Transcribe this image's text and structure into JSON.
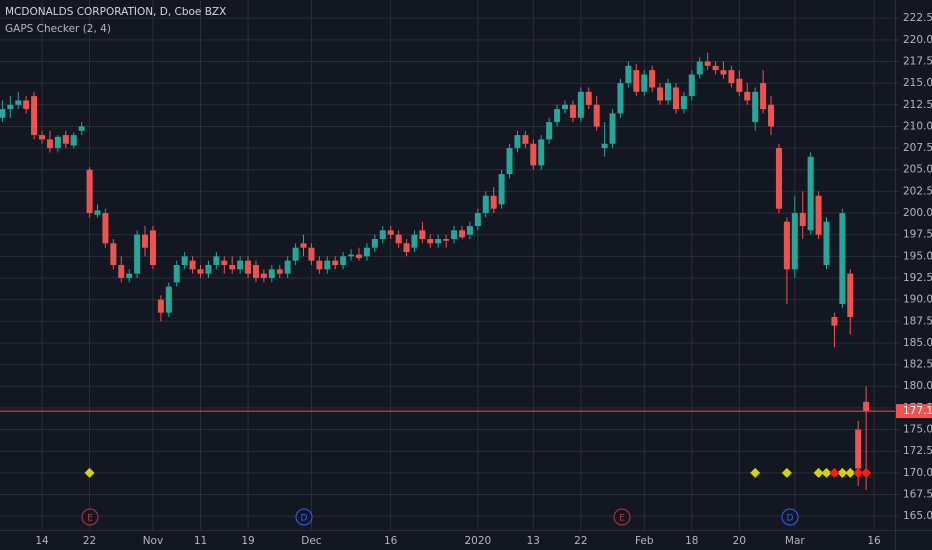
{
  "chart_data": {
    "type": "candlestick",
    "title": "MCDONALDS CORPORATION, D, Cboe BZX",
    "subtitle": "GAPS Checker (2, 4)",
    "up_color": "#26a69a",
    "down_color": "#ef5350",
    "last_price_color": "#ef5350",
    "grid": true,
    "ylim": [
      163.4,
      224.6
    ],
    "yticks": [
      {
        "value": 165,
        "label": "165.00"
      },
      {
        "value": 167.5,
        "label": "167.50"
      },
      {
        "value": 170,
        "label": "170.00"
      },
      {
        "value": 172.5,
        "label": "172.50"
      },
      {
        "value": 175,
        "label": "175.00"
      },
      {
        "value": 177.5,
        "label": "177.50"
      },
      {
        "value": 180,
        "label": "180.00"
      },
      {
        "value": 182.5,
        "label": "182.50"
      },
      {
        "value": 185,
        "label": "185.00"
      },
      {
        "value": 187.5,
        "label": "187.50"
      },
      {
        "value": 190,
        "label": "190.00"
      },
      {
        "value": 192.5,
        "label": "192.50"
      },
      {
        "value": 195,
        "label": "195.00"
      },
      {
        "value": 197.5,
        "label": "197.50"
      },
      {
        "value": 200,
        "label": "200.00"
      },
      {
        "value": 202.5,
        "label": "202.50"
      },
      {
        "value": 205,
        "label": "205.00"
      },
      {
        "value": 207.5,
        "label": "207.50"
      },
      {
        "value": 210,
        "label": "210.00"
      },
      {
        "value": 212.5,
        "label": "212.50"
      },
      {
        "value": 215,
        "label": "215.00"
      },
      {
        "value": 217.5,
        "label": "217.50"
      },
      {
        "value": 220,
        "label": "220.00"
      },
      {
        "value": 222.5,
        "label": "222.50"
      }
    ],
    "categories": [
      null,
      null,
      null,
      null,
      null,
      "14",
      null,
      null,
      null,
      null,
      null,
      "22",
      null,
      null,
      null,
      null,
      null,
      null,
      null,
      "Nov",
      null,
      null,
      null,
      null,
      null,
      "11",
      null,
      null,
      null,
      null,
      null,
      "19",
      null,
      null,
      null,
      null,
      null,
      null,
      null,
      "Dec",
      null,
      null,
      null,
      null,
      null,
      null,
      null,
      null,
      null,
      "16",
      null,
      null,
      null,
      null,
      null,
      null,
      null,
      null,
      null,
      null,
      "2020",
      null,
      null,
      null,
      null,
      null,
      null,
      "13",
      null,
      null,
      null,
      null,
      null,
      "22",
      null,
      null,
      null,
      null,
      null,
      null,
      null,
      "Feb",
      null,
      null,
      null,
      null,
      null,
      "18",
      null,
      null,
      null,
      null,
      null,
      "20",
      null,
      null,
      null,
      null,
      null,
      null,
      "Mar",
      null,
      null,
      null,
      null,
      null,
      null,
      null,
      null,
      null,
      "16"
    ],
    "open": [
      211,
      212,
      212.5,
      213,
      213.5,
      209,
      208.5,
      207.5,
      209,
      207.8,
      209.5,
      205,
      199.8,
      200,
      196.5,
      194,
      192.5,
      193,
      197.5,
      198,
      190,
      188.5,
      192,
      194,
      194.5,
      193.5,
      193,
      194,
      194.5,
      194,
      193.5,
      194.5,
      194,
      193,
      192.5,
      193.5,
      193,
      194.5,
      196.5,
      196,
      194.5,
      193.5,
      194.5,
      194,
      195,
      195.2,
      195,
      196,
      197,
      198,
      197.5,
      196.5,
      196,
      198,
      197,
      196.5,
      197,
      197,
      198,
      197.5,
      198.5,
      200,
      202,
      201,
      204.5,
      207.5,
      209,
      208,
      205.5,
      208.5,
      210.5,
      212,
      212.5,
      211,
      214,
      212.5,
      207.5,
      208,
      211.5,
      215,
      216.5,
      214,
      216.5,
      214.5,
      213,
      214.5,
      212,
      213.5,
      216,
      217.5,
      217,
      216.5,
      216.5,
      215.5,
      214,
      210.5,
      215,
      212.5,
      207.5,
      199,
      193.5,
      200,
      198,
      202,
      194,
      188,
      189.5,
      193,
      175,
      178.2,
      null
    ],
    "high": [
      213,
      213.5,
      214,
      213.5,
      214,
      209.5,
      209.5,
      209,
      209.5,
      209.3,
      210.5,
      205.3,
      201,
      200.5,
      197,
      195,
      193.5,
      198,
      198.5,
      198.5,
      190.5,
      192,
      194.5,
      195.5,
      195,
      194,
      194.5,
      195.5,
      195,
      195,
      195,
      195,
      194.5,
      193.5,
      194,
      194,
      195,
      196.5,
      197.5,
      196.5,
      195,
      195,
      195,
      195.5,
      195.8,
      196,
      196.5,
      197.5,
      198.5,
      198.5,
      198,
      197,
      198,
      199,
      197.5,
      197.5,
      197.5,
      198.5,
      198.5,
      199,
      200.5,
      202.5,
      203,
      205,
      208,
      209.5,
      209.5,
      208.5,
      209,
      211,
      212.5,
      213,
      213,
      214.5,
      214.5,
      213.5,
      210.5,
      212,
      215.5,
      217.5,
      217.2,
      216.5,
      217,
      215,
      215.5,
      215,
      214,
      216.5,
      218,
      218.5,
      217.5,
      217.5,
      217,
      216.5,
      215,
      214.5,
      216.5,
      213.5,
      208,
      199.5,
      202,
      202.5,
      207,
      202.5,
      199.5,
      188.5,
      200.5,
      193.5,
      176,
      180,
      null
    ],
    "low": [
      210.5,
      211,
      212,
      211.5,
      208.5,
      208,
      207,
      207,
      207.5,
      207.5,
      209,
      199.5,
      199.5,
      196,
      193.5,
      192,
      192,
      192.5,
      195,
      193.5,
      187.5,
      188,
      191.5,
      193.5,
      193,
      192.5,
      192.5,
      193.5,
      193,
      193,
      193,
      192.5,
      192,
      192,
      192,
      192.5,
      192.5,
      194,
      195,
      194,
      193,
      193,
      193.5,
      193.5,
      194.5,
      194.5,
      194.5,
      195.5,
      196.5,
      197,
      196,
      195,
      195.5,
      196.5,
      196,
      196,
      196,
      196.5,
      197,
      197,
      198,
      199.5,
      200,
      200.5,
      204,
      207,
      207.5,
      205,
      205,
      208,
      210,
      211.5,
      210.5,
      210.5,
      212,
      209.5,
      206.5,
      207.5,
      211,
      214.5,
      213.5,
      213.5,
      214,
      212.5,
      212.5,
      211.5,
      211.5,
      213,
      215.5,
      216.5,
      216,
      215.5,
      214.5,
      213.5,
      212.5,
      209.5,
      211.5,
      209,
      200,
      189.5,
      192.5,
      197,
      197.5,
      197,
      193.5,
      184.5,
      189,
      186,
      168.5,
      168,
      null
    ],
    "close": [
      212,
      212.5,
      213,
      212,
      209,
      208.5,
      207.5,
      208.8,
      208,
      209,
      210,
      200,
      200.3,
      196.5,
      194,
      192.5,
      193,
      197.5,
      196,
      194,
      188.5,
      191.5,
      194,
      195,
      193.5,
      193,
      194,
      195,
      194,
      193.5,
      194.5,
      193,
      192.5,
      192.5,
      193.5,
      193,
      194.5,
      196,
      196,
      194.5,
      193.5,
      194.5,
      194,
      195,
      195.2,
      194.8,
      196,
      197,
      198,
      197.5,
      196.5,
      195.5,
      197.5,
      197,
      196.5,
      197,
      196.8,
      198,
      197.2,
      198.5,
      200,
      202,
      200.5,
      204.5,
      207.5,
      209,
      208,
      205.5,
      208.5,
      210.5,
      212,
      212.5,
      211,
      214,
      212.5,
      210,
      208,
      211.5,
      215,
      217,
      214,
      216,
      214.5,
      213,
      215,
      212,
      213.5,
      216,
      217.5,
      217,
      216.5,
      216,
      215,
      214,
      213,
      214,
      212,
      210,
      200.5,
      193.5,
      200,
      198.5,
      206.5,
      197.5,
      199,
      187,
      200,
      188,
      170.5,
      177.13,
      null
    ],
    "markers": [
      {
        "color": "#d4d400",
        "values": [
          null,
          null,
          null,
          null,
          null,
          null,
          null,
          null,
          null,
          null,
          null,
          170,
          null,
          null,
          null,
          null,
          null,
          null,
          null,
          null,
          null,
          null,
          null,
          null,
          null,
          null,
          null,
          null,
          null,
          null,
          null,
          null,
          null,
          null,
          null,
          null,
          null,
          null,
          null,
          null,
          null,
          null,
          null,
          null,
          null,
          null,
          null,
          null,
          null,
          null,
          null,
          null,
          null,
          null,
          null,
          null,
          null,
          null,
          null,
          null,
          null,
          null,
          null,
          null,
          null,
          null,
          null,
          null,
          null,
          null,
          null,
          null,
          null,
          null,
          null,
          null,
          null,
          null,
          null,
          null,
          null,
          null,
          null,
          null,
          null,
          null,
          null,
          null,
          null,
          null,
          null,
          null,
          null,
          null,
          null,
          170,
          null,
          null,
          null,
          170,
          null,
          null,
          null,
          170,
          170,
          null,
          170,
          170,
          null,
          null,
          null
        ]
      },
      {
        "color": "#ff1a1a",
        "values": [
          null,
          null,
          null,
          null,
          null,
          null,
          null,
          null,
          null,
          null,
          null,
          null,
          null,
          null,
          null,
          null,
          null,
          null,
          null,
          null,
          null,
          null,
          null,
          null,
          null,
          null,
          null,
          null,
          null,
          null,
          null,
          null,
          null,
          null,
          null,
          null,
          null,
          null,
          null,
          null,
          null,
          null,
          null,
          null,
          null,
          null,
          null,
          null,
          null,
          null,
          null,
          null,
          null,
          null,
          null,
          null,
          null,
          null,
          null,
          null,
          null,
          null,
          null,
          null,
          null,
          null,
          null,
          null,
          null,
          null,
          null,
          null,
          null,
          null,
          null,
          null,
          null,
          null,
          null,
          null,
          null,
          null,
          null,
          null,
          null,
          null,
          null,
          null,
          null,
          null,
          null,
          null,
          null,
          null,
          null,
          null,
          null,
          null,
          null,
          null,
          null,
          null,
          null,
          null,
          null,
          170,
          null,
          null,
          170,
          170,
          null
        ]
      }
    ],
    "events": [
      {
        "label": "E",
        "color": "#b03a46"
      },
      {
        "label": "D",
        "color": "#2962ff"
      },
      {
        "label": "E",
        "color": "#b03a46"
      },
      {
        "label": "D",
        "color": "#2962ff"
      }
    ]
  }
}
